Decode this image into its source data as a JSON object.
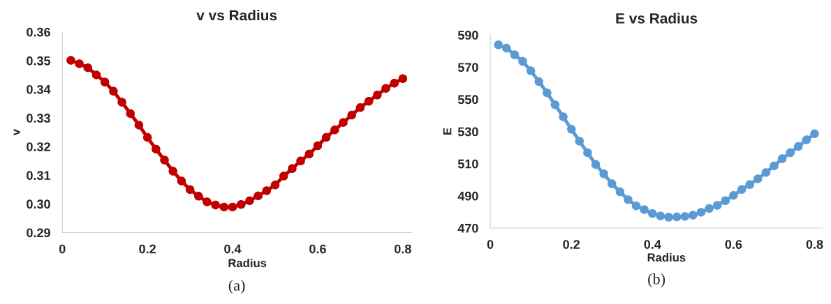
{
  "chart_data": [
    {
      "type": "line",
      "title": "v vs Radius",
      "xlabel": "Radius",
      "ylabel": "v",
      "marker": "circle",
      "line_style": "solid",
      "grid": false,
      "legend": false,
      "x": [
        0.02,
        0.04,
        0.06,
        0.08,
        0.1,
        0.12,
        0.14,
        0.16,
        0.18,
        0.2,
        0.22,
        0.24,
        0.26,
        0.28,
        0.3,
        0.32,
        0.34,
        0.36,
        0.38,
        0.4,
        0.42,
        0.44,
        0.46,
        0.48,
        0.5,
        0.52,
        0.54,
        0.56,
        0.58,
        0.6,
        0.62,
        0.64,
        0.66,
        0.68,
        0.7,
        0.72,
        0.74,
        0.76,
        0.78,
        0.8
      ],
      "series": [
        {
          "color": "#c00000",
          "values": [
            0.3501,
            0.3489,
            0.3475,
            0.345,
            0.3425,
            0.3393,
            0.3355,
            0.3315,
            0.3275,
            0.3232,
            0.3191,
            0.3153,
            0.3114,
            0.308,
            0.305,
            0.3027,
            0.3007,
            0.2996,
            0.2989,
            0.2989,
            0.2998,
            0.3011,
            0.3028,
            0.3046,
            0.3066,
            0.3097,
            0.3123,
            0.315,
            0.3174,
            0.3203,
            0.3232,
            0.3258,
            0.3284,
            0.331,
            0.3336,
            0.3358,
            0.338,
            0.3403,
            0.3421,
            0.3437
          ]
        }
      ],
      "xlim": [
        0,
        0.82
      ],
      "xticks": [
        0,
        0.2,
        0.4,
        0.6,
        0.8
      ],
      "ylim": [
        0.29,
        0.36
      ],
      "yticks": [
        {
          "value": 0.29,
          "label": "0.29"
        },
        {
          "value": 0.3,
          "label": "0.30"
        },
        {
          "value": 0.31,
          "label": "0.31"
        },
        {
          "value": 0.32,
          "label": "0.32"
        },
        {
          "value": 0.33,
          "label": "0.33"
        },
        {
          "value": 0.34,
          "label": "0.34"
        },
        {
          "value": 0.35,
          "label": "0.35"
        },
        {
          "value": 0.36,
          "label": "0.36"
        }
      ],
      "annotations": [
        "(a)"
      ]
    },
    {
      "type": "line",
      "title": "E vs Radius",
      "xlabel": "Radius",
      "ylabel": "E",
      "marker": "circle",
      "line_style": "solid",
      "grid": false,
      "legend": false,
      "x": [
        0.02,
        0.04,
        0.06,
        0.08,
        0.1,
        0.12,
        0.14,
        0.16,
        0.18,
        0.2,
        0.22,
        0.24,
        0.26,
        0.28,
        0.3,
        0.32,
        0.34,
        0.36,
        0.38,
        0.4,
        0.42,
        0.44,
        0.46,
        0.48,
        0.5,
        0.52,
        0.54,
        0.56,
        0.58,
        0.6,
        0.62,
        0.64,
        0.66,
        0.68,
        0.7,
        0.72,
        0.74,
        0.76,
        0.78,
        0.8
      ],
      "series": [
        {
          "color": "#5b9bd5",
          "values": [
            583.9,
            581.8,
            577.7,
            573.6,
            567.7,
            561.0,
            554.0,
            546.6,
            539.1,
            531.4,
            524.0,
            516.8,
            509.5,
            503.7,
            497.5,
            492.5,
            487.6,
            483.8,
            481.4,
            479.0,
            477.5,
            476.7,
            476.9,
            477.2,
            478.0,
            479.8,
            482.1,
            484.1,
            487.0,
            490.3,
            493.9,
            497.0,
            500.6,
            504.5,
            508.6,
            513.1,
            516.8,
            520.7,
            524.8,
            528.6
          ]
        }
      ],
      "xlim": [
        0,
        0.82
      ],
      "xticks": [
        0,
        0.2,
        0.4,
        0.6,
        0.8
      ],
      "ylim": [
        470,
        590
      ],
      "yticks": [
        470,
        490,
        510,
        530,
        550,
        570,
        590
      ],
      "annotations": [
        "(b)"
      ]
    }
  ]
}
